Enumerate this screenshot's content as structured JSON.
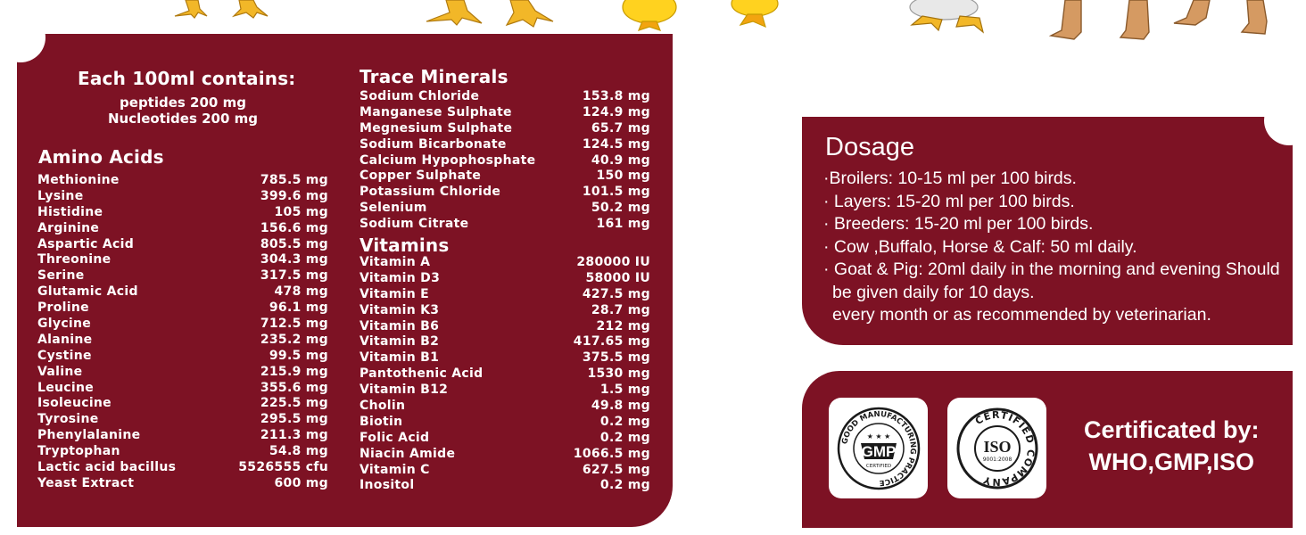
{
  "composition": {
    "title": "Each 100ml contains:",
    "intro": [
      "peptides 200 mg",
      "Nucleotides 200 mg"
    ],
    "amino_acids": {
      "heading": "Amino Acids",
      "items": [
        {
          "name": "Methionine",
          "amount": "785.5 mg"
        },
        {
          "name": "Lysine",
          "amount": "399.6 mg"
        },
        {
          "name": "Histidine",
          "amount": "105 mg"
        },
        {
          "name": "Arginine",
          "amount": "156.6 mg"
        },
        {
          "name": "Aspartic Acid",
          "amount": "805.5 mg"
        },
        {
          "name": "Threonine",
          "amount": "304.3 mg"
        },
        {
          "name": "Serine",
          "amount": "317.5 mg"
        },
        {
          "name": "Glutamic Acid",
          "amount": "478 mg"
        },
        {
          "name": "Proline",
          "amount": "96.1 mg"
        },
        {
          "name": "Glycine",
          "amount": "712.5 mg"
        },
        {
          "name": "Alanine",
          "amount": "235.2 mg"
        },
        {
          "name": "Cystine",
          "amount": "99.5 mg"
        },
        {
          "name": "Valine",
          "amount": "215.9 mg"
        },
        {
          "name": "Leucine",
          "amount": "355.6 mg"
        },
        {
          "name": "Isoleucine",
          "amount": "225.5 mg"
        },
        {
          "name": "Tyrosine",
          "amount": "295.5 mg"
        },
        {
          "name": "Phenylalanine",
          "amount": "211.3 mg"
        },
        {
          "name": "Tryptophan",
          "amount": "54.8 mg"
        },
        {
          "name": "Lactic acid bacillus",
          "amount": "5526555 cfu"
        },
        {
          "name": "Yeast Extract",
          "amount": "600 mg"
        }
      ]
    },
    "trace_minerals": {
      "heading": "Trace Minerals",
      "items": [
        {
          "name": "Sodium Chloride",
          "amount": "153.8 mg"
        },
        {
          "name": "Manganese Sulphate",
          "amount": "124.9 mg"
        },
        {
          "name": "Megnesium Sulphate",
          "amount": "65.7 mg"
        },
        {
          "name": "Sodium Bicarbonate",
          "amount": "124.5 mg"
        },
        {
          "name": "Calcium Hypophosphate",
          "amount": "40.9 mg"
        },
        {
          "name": "Copper Sulphate",
          "amount": "150 mg"
        },
        {
          "name": "Potassium Chloride",
          "amount": "101.5 mg"
        },
        {
          "name": "Selenium",
          "amount": "50.2 mg"
        },
        {
          "name": "Sodium Citrate",
          "amount": "161 mg"
        }
      ]
    },
    "vitamins": {
      "heading": "Vitamins",
      "items": [
        {
          "name": "Vitamin A",
          "amount": "280000 IU"
        },
        {
          "name": "Vitamin D3",
          "amount": "58000 IU"
        },
        {
          "name": "Vitamin E",
          "amount": "427.5 mg"
        },
        {
          "name": "Vitamin K3",
          "amount": "28.7 mg"
        },
        {
          "name": "Vitamin B6",
          "amount": "212 mg"
        },
        {
          "name": "Vitamin B2",
          "amount": "417.65 mg"
        },
        {
          "name": "Vitamin B1",
          "amount": "375.5 mg"
        },
        {
          "name": "Pantothenic Acid",
          "amount": "1530 mg"
        },
        {
          "name": "Vitamin B12",
          "amount": "1.5 mg"
        },
        {
          "name": "Cholin",
          "amount": "49.8 mg"
        },
        {
          "name": "Biotin",
          "amount": "0.2 mg"
        },
        {
          "name": "Folic Acid",
          "amount": "0.2 mg"
        },
        {
          "name": "Niacin Amide",
          "amount": "1066.5 mg"
        },
        {
          "name": "Vitamin C",
          "amount": "627.5 mg"
        },
        {
          "name": "Inositol",
          "amount": "0.2 mg"
        }
      ]
    }
  },
  "dosage": {
    "title": "Dosage",
    "lines": [
      "·Broilers: 10-15 ml per 100 birds.",
      "· Layers: 15-20 ml per 100 birds.",
      "· Breeders: 15-20 ml per 100 birds.",
      "· Cow ,Buffalo, Horse & Calf: 50 ml daily.",
      "· Goat & Pig: 20ml daily in the morning and evening Should",
      "  be given daily for 10 days.",
      "  every month or as recommended by veterinarian."
    ]
  },
  "certification": {
    "gmp_badge": {
      "ring_text": "GOOD MANUFACTURING PRACTICE",
      "center": "GMP",
      "sub": "CERTIFIED"
    },
    "iso_badge": {
      "ring_text": "CERTIFIED COMPANY",
      "center": "ISO",
      "sub": "9001:2008"
    },
    "label": "Certificated by:",
    "bodies": "WHO,GMP,ISO"
  },
  "colors": {
    "panel": "#7d1224",
    "text": "#ffffff",
    "badge_ink": "#1a1a1a"
  }
}
